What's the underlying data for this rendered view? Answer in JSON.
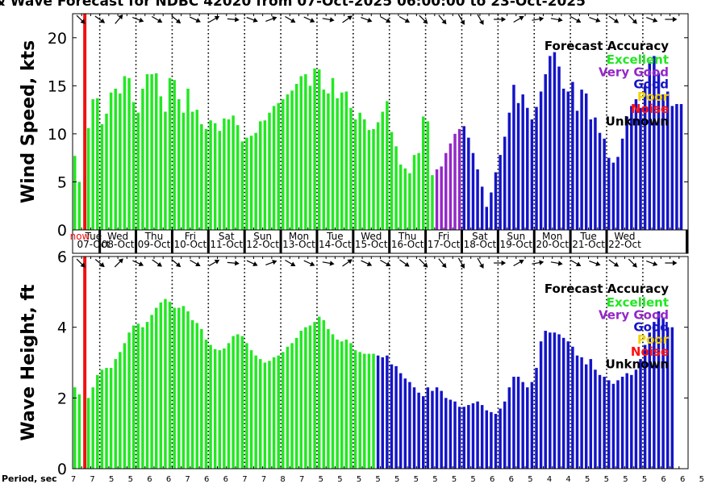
{
  "title": "& Wave Forecast for NDBC 42020 from 07-Oct-2025 06:00:00 to 23-Oct-2025",
  "colors": {
    "excellent": "#22e822",
    "very_good": "#9428c8",
    "good": "#1414c8",
    "poor": "#f2d200",
    "noise": "#ff1010",
    "unknown": "#000000",
    "now_line": "#ee1111"
  },
  "legend": {
    "title": "Forecast Accuracy",
    "items": [
      {
        "label": "Excellent",
        "color": "#22e822"
      },
      {
        "label": "Very Good",
        "color": "#9428c8"
      },
      {
        "label": "Good",
        "color": "#1414c8"
      },
      {
        "label": "Poor",
        "color": "#f2d200"
      },
      {
        "label": "Noise",
        "color": "#ff1010"
      },
      {
        "label": "Unknown",
        "color": "#000000"
      }
    ]
  },
  "now_label": "now",
  "period_label": "Period, sec",
  "periods": [
    "7",
    "7",
    "5",
    "5",
    "6",
    "6",
    "7",
    "6",
    "6",
    "7",
    "7",
    "8",
    "7",
    "5",
    "5",
    "5",
    "5",
    "5",
    "5",
    "5",
    "5",
    "5",
    "6",
    "6",
    "5",
    "4",
    "4",
    "5",
    "5",
    "5",
    "5",
    "6",
    "6",
    "5"
  ],
  "days": [
    {
      "name": "Tue",
      "date": "07-Oct"
    },
    {
      "name": "Wed",
      "date": "08-Oct"
    },
    {
      "name": "Thu",
      "date": "09-Oct"
    },
    {
      "name": "Fri",
      "date": "10-Oct"
    },
    {
      "name": "Sat",
      "date": "11-Oct"
    },
    {
      "name": "Sun",
      "date": "12-Oct"
    },
    {
      "name": "Mon",
      "date": "13-Oct"
    },
    {
      "name": "Tue",
      "date": "14-Oct"
    },
    {
      "name": "Wed",
      "date": "15-Oct"
    },
    {
      "name": "Thu",
      "date": "16-Oct"
    },
    {
      "name": "Fri",
      "date": "17-Oct"
    },
    {
      "name": "Sat",
      "date": "18-Oct"
    },
    {
      "name": "Sun",
      "date": "19-Oct"
    },
    {
      "name": "Mon",
      "date": "20-Oct"
    },
    {
      "name": "Tue",
      "date": "21-Oct"
    },
    {
      "name": "Wed",
      "date": "22-Oct"
    }
  ],
  "chart_data": [
    {
      "type": "bar",
      "ylabel": "Wind Speed, kts",
      "ylim": [
        0,
        22.5
      ],
      "yticks": [
        0,
        5,
        10,
        15,
        20
      ],
      "grid": true,
      "legend_position": "top-right",
      "bar_interval_hours": 3,
      "quality_segments": [
        {
          "from": 0,
          "to": 80,
          "quality": "excellent"
        },
        {
          "from": 80,
          "to": 86,
          "quality": "very_good"
        },
        {
          "from": 86,
          "to": 135,
          "quality": "good"
        }
      ],
      "values": [
        7.7,
        5.0,
        null,
        10.6,
        13.6,
        13.7,
        11.0,
        12.1,
        14.3,
        14.7,
        14.2,
        16.0,
        15.8,
        13.3,
        12.2,
        14.7,
        16.2,
        16.2,
        16.3,
        13.9,
        12.3,
        15.8,
        15.6,
        13.6,
        12.2,
        14.7,
        12.3,
        12.5,
        11.0,
        10.5,
        11.4,
        11.1,
        10.3,
        11.6,
        11.5,
        11.9,
        10.9,
        9.2,
        9.6,
        9.8,
        10.1,
        11.3,
        11.4,
        12.2,
        12.9,
        13.2,
        13.6,
        14.1,
        14.5,
        15.2,
        16.0,
        16.2,
        15.0,
        16.8,
        16.7,
        14.6,
        14.2,
        15.8,
        13.7,
        14.3,
        14.4,
        12.7,
        11.5,
        12.2,
        11.5,
        10.4,
        10.5,
        11.2,
        12.3,
        13.4,
        10.2,
        8.7,
        6.8,
        6.4,
        5.9,
        7.8,
        8.0,
        11.8,
        11.3,
        5.7,
        6.3,
        6.6,
        8.0,
        9.0,
        10.0,
        10.5,
        10.8,
        9.6,
        8.0,
        6.3,
        4.5,
        2.4,
        3.9,
        6.0,
        7.8,
        9.7,
        12.2,
        15.1,
        13.2,
        14.1,
        12.7,
        11.5,
        12.8,
        14.4,
        16.2,
        18.1,
        18.5,
        17.0,
        14.7,
        14.4,
        15.4,
        12.4,
        14.6,
        14.2,
        11.5,
        11.7,
        10.1,
        9.5,
        7.5,
        7.0,
        7.6,
        9.5,
        11.8,
        12.9,
        13.6,
        12.7,
        15.0,
        17.5,
        18.1,
        16.3,
        14.1,
        14.4,
        12.9,
        13.1,
        13.1
      ],
      "direction_arrows_deg": [
        135,
        125,
        40,
        110,
        120,
        130,
        115,
        60,
        95,
        110,
        70,
        120,
        115,
        100,
        55,
        110,
        120,
        120,
        135,
        140,
        150,
        150,
        90,
        60,
        80,
        100,
        120,
        110,
        125,
        135,
        110,
        90
      ]
    },
    {
      "type": "bar",
      "ylabel": "Wave Height, ft",
      "ylim": [
        0,
        6
      ],
      "yticks": [
        0,
        2,
        4,
        6
      ],
      "grid": true,
      "legend_position": "top-right",
      "bar_interval_hours": 3,
      "quality_segments": [
        {
          "from": 0,
          "to": 67,
          "quality": "excellent"
        },
        {
          "from": 67,
          "to": 135,
          "quality": "good"
        }
      ],
      "values": [
        2.3,
        2.1,
        null,
        2.0,
        2.3,
        2.65,
        2.8,
        2.85,
        2.85,
        3.1,
        3.3,
        3.55,
        3.85,
        4.05,
        4.1,
        4.0,
        4.15,
        4.35,
        4.55,
        4.7,
        4.8,
        4.72,
        4.55,
        4.55,
        4.6,
        4.45,
        4.2,
        4.12,
        3.95,
        3.65,
        3.5,
        3.38,
        3.35,
        3.4,
        3.55,
        3.75,
        3.8,
        3.75,
        3.55,
        3.35,
        3.2,
        3.1,
        3.0,
        3.05,
        3.15,
        3.2,
        3.3,
        3.45,
        3.55,
        3.7,
        3.9,
        4.0,
        4.05,
        4.15,
        4.3,
        4.2,
        3.95,
        3.8,
        3.65,
        3.6,
        3.65,
        3.55,
        3.35,
        3.3,
        3.25,
        3.25,
        3.25,
        3.2,
        3.15,
        3.2,
        2.95,
        2.9,
        2.7,
        2.55,
        2.45,
        2.3,
        2.15,
        2.05,
        2.3,
        2.2,
        2.3,
        2.2,
        2.0,
        1.95,
        1.9,
        1.75,
        1.75,
        1.8,
        1.85,
        1.9,
        1.8,
        1.65,
        1.6,
        1.55,
        1.7,
        1.9,
        2.3,
        2.6,
        2.6,
        2.45,
        2.3,
        2.45,
        2.85,
        3.6,
        3.9,
        3.85,
        3.85,
        3.8,
        3.7,
        3.6,
        3.45,
        3.2,
        3.15,
        2.95,
        3.1,
        2.8,
        2.65,
        2.6,
        2.5,
        2.4,
        2.5,
        2.6,
        2.7,
        2.65,
        2.8,
        3.1,
        3.5,
        3.85,
        4.15,
        4.45,
        4.25,
        4.0,
        4.0,
        null,
        null
      ],
      "direction_arrows_deg": [
        135,
        130,
        45,
        115,
        125,
        130,
        120,
        60,
        95,
        115,
        70,
        120,
        115,
        100,
        55,
        115,
        120,
        125,
        135,
        140,
        150,
        150,
        90,
        60,
        80,
        100,
        120,
        110,
        125,
        135,
        110,
        90
      ]
    }
  ]
}
